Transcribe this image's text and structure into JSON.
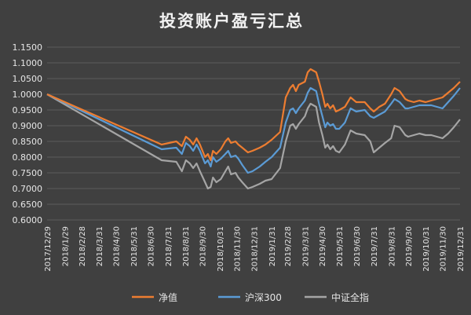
{
  "chart_data": {
    "type": "line",
    "title": "投资账户盈亏汇总",
    "xlabel": "",
    "ylabel": "",
    "ylim": [
      0.6,
      1.15
    ],
    "yticks": [
      "1.1500",
      "1.1000",
      "1.0500",
      "1.0000",
      "0.9500",
      "0.9000",
      "0.8500",
      "0.8000",
      "0.7500",
      "0.7000",
      "0.6500",
      "0.6000"
    ],
    "xticks": [
      "2017/12/29",
      "2018/1/29",
      "2018/2/28",
      "2018/3/31",
      "2018/4/30",
      "2018/5/31",
      "2018/6/30",
      "2018/7/31",
      "2018/8/31",
      "2018/9/30",
      "2018/10/31",
      "2018/11/30",
      "2018/12/31",
      "2019/1/31",
      "2019/2/28",
      "2019/3/31",
      "2019/4/30",
      "2019/5/31",
      "2019/6/30",
      "2019/7/31",
      "2019/8/31",
      "2019/9/30",
      "2019/10/31",
      "2019/11/30",
      "2019/12/31"
    ],
    "grid": true,
    "legend_position": "bottom",
    "series": [
      {
        "name": "净值",
        "color": "#ED7D31",
        "points": [
          [
            "2017-12-29",
            1.0
          ],
          [
            "2018-07-20",
            0.84
          ],
          [
            "2018-08-15",
            0.85
          ],
          [
            "2018-08-25",
            0.835
          ],
          [
            "2018-09-01",
            0.865
          ],
          [
            "2018-09-08",
            0.855
          ],
          [
            "2018-09-14",
            0.84
          ],
          [
            "2018-09-20",
            0.86
          ],
          [
            "2018-09-26",
            0.84
          ],
          [
            "2018-10-05",
            0.8
          ],
          [
            "2018-10-10",
            0.81
          ],
          [
            "2018-10-15",
            0.79
          ],
          [
            "2018-10-19",
            0.82
          ],
          [
            "2018-10-25",
            0.81
          ],
          [
            "2018-11-02",
            0.825
          ],
          [
            "2018-11-10",
            0.85
          ],
          [
            "2018-11-15",
            0.86
          ],
          [
            "2018-11-20",
            0.845
          ],
          [
            "2018-11-28",
            0.85
          ],
          [
            "2018-12-03",
            0.84
          ],
          [
            "2018-12-10",
            0.83
          ],
          [
            "2018-12-20",
            0.815
          ],
          [
            "2018-12-28",
            0.82
          ],
          [
            "2019-01-10",
            0.83
          ],
          [
            "2019-01-20",
            0.84
          ],
          [
            "2019-01-31",
            0.855
          ],
          [
            "2019-02-15",
            0.88
          ],
          [
            "2019-02-25",
            0.99
          ],
          [
            "2019-03-05",
            1.02
          ],
          [
            "2019-03-10",
            1.03
          ],
          [
            "2019-03-15",
            1.01
          ],
          [
            "2019-03-20",
            1.03
          ],
          [
            "2019-03-31",
            1.04
          ],
          [
            "2019-04-05",
            1.07
          ],
          [
            "2019-04-10",
            1.08
          ],
          [
            "2019-04-15",
            1.075
          ],
          [
            "2019-04-20",
            1.07
          ],
          [
            "2019-04-25",
            1.04
          ],
          [
            "2019-05-01",
            1.0
          ],
          [
            "2019-05-06",
            0.96
          ],
          [
            "2019-05-10",
            0.97
          ],
          [
            "2019-05-15",
            0.955
          ],
          [
            "2019-05-20",
            0.965
          ],
          [
            "2019-05-25",
            0.945
          ],
          [
            "2019-05-31",
            0.95
          ],
          [
            "2019-06-10",
            0.96
          ],
          [
            "2019-06-20",
            0.99
          ],
          [
            "2019-06-30",
            0.975
          ],
          [
            "2019-07-15",
            0.975
          ],
          [
            "2019-07-25",
            0.955
          ],
          [
            "2019-07-31",
            0.945
          ],
          [
            "2019-08-10",
            0.96
          ],
          [
            "2019-08-20",
            0.97
          ],
          [
            "2019-08-31",
            1.0
          ],
          [
            "2019-09-06",
            1.02
          ],
          [
            "2019-09-15",
            1.01
          ],
          [
            "2019-09-25",
            0.985
          ],
          [
            "2019-09-30",
            0.98
          ],
          [
            "2019-10-10",
            0.975
          ],
          [
            "2019-10-20",
            0.98
          ],
          [
            "2019-10-31",
            0.975
          ],
          [
            "2019-11-10",
            0.98
          ],
          [
            "2019-11-20",
            0.985
          ],
          [
            "2019-11-30",
            0.99
          ],
          [
            "2019-12-10",
            1.005
          ],
          [
            "2019-12-20",
            1.02
          ],
          [
            "2019-12-31",
            1.04
          ]
        ]
      },
      {
        "name": "沪深300",
        "color": "#5B9BD5",
        "points": [
          [
            "2017-12-29",
            1.0
          ],
          [
            "2018-07-20",
            0.825
          ],
          [
            "2018-08-15",
            0.83
          ],
          [
            "2018-08-25",
            0.81
          ],
          [
            "2018-09-01",
            0.845
          ],
          [
            "2018-09-08",
            0.835
          ],
          [
            "2018-09-14",
            0.82
          ],
          [
            "2018-09-20",
            0.84
          ],
          [
            "2018-09-26",
            0.82
          ],
          [
            "2018-10-05",
            0.78
          ],
          [
            "2018-10-10",
            0.79
          ],
          [
            "2018-10-15",
            0.77
          ],
          [
            "2018-10-19",
            0.8
          ],
          [
            "2018-10-25",
            0.785
          ],
          [
            "2018-11-02",
            0.795
          ],
          [
            "2018-11-10",
            0.81
          ],
          [
            "2018-11-15",
            0.82
          ],
          [
            "2018-11-20",
            0.8
          ],
          [
            "2018-11-28",
            0.805
          ],
          [
            "2018-12-03",
            0.795
          ],
          [
            "2018-12-10",
            0.775
          ],
          [
            "2018-12-20",
            0.75
          ],
          [
            "2018-12-28",
            0.755
          ],
          [
            "2019-01-10",
            0.77
          ],
          [
            "2019-01-20",
            0.785
          ],
          [
            "2019-01-31",
            0.8
          ],
          [
            "2019-02-15",
            0.83
          ],
          [
            "2019-02-25",
            0.91
          ],
          [
            "2019-03-05",
            0.95
          ],
          [
            "2019-03-10",
            0.955
          ],
          [
            "2019-03-15",
            0.94
          ],
          [
            "2019-03-20",
            0.955
          ],
          [
            "2019-03-31",
            0.98
          ],
          [
            "2019-04-05",
            1.005
          ],
          [
            "2019-04-10",
            1.02
          ],
          [
            "2019-04-15",
            1.015
          ],
          [
            "2019-04-20",
            1.01
          ],
          [
            "2019-04-25",
            0.97
          ],
          [
            "2019-05-01",
            0.93
          ],
          [
            "2019-05-06",
            0.895
          ],
          [
            "2019-05-10",
            0.91
          ],
          [
            "2019-05-15",
            0.9
          ],
          [
            "2019-05-20",
            0.905
          ],
          [
            "2019-05-25",
            0.89
          ],
          [
            "2019-05-31",
            0.89
          ],
          [
            "2019-06-10",
            0.91
          ],
          [
            "2019-06-20",
            0.955
          ],
          [
            "2019-06-30",
            0.945
          ],
          [
            "2019-07-15",
            0.95
          ],
          [
            "2019-07-25",
            0.93
          ],
          [
            "2019-07-31",
            0.925
          ],
          [
            "2019-08-10",
            0.935
          ],
          [
            "2019-08-20",
            0.945
          ],
          [
            "2019-08-31",
            0.97
          ],
          [
            "2019-09-06",
            0.985
          ],
          [
            "2019-09-15",
            0.975
          ],
          [
            "2019-09-25",
            0.955
          ],
          [
            "2019-09-30",
            0.955
          ],
          [
            "2019-10-10",
            0.96
          ],
          [
            "2019-10-20",
            0.965
          ],
          [
            "2019-10-31",
            0.965
          ],
          [
            "2019-11-10",
            0.965
          ],
          [
            "2019-11-20",
            0.96
          ],
          [
            "2019-11-30",
            0.955
          ],
          [
            "2019-12-10",
            0.975
          ],
          [
            "2019-12-20",
            0.995
          ],
          [
            "2019-12-31",
            1.02
          ]
        ]
      },
      {
        "name": "中证全指",
        "color": "#A5A5A5",
        "points": [
          [
            "2017-12-29",
            1.0
          ],
          [
            "2018-07-20",
            0.79
          ],
          [
            "2018-08-15",
            0.785
          ],
          [
            "2018-08-25",
            0.755
          ],
          [
            "2018-09-01",
            0.79
          ],
          [
            "2018-09-08",
            0.78
          ],
          [
            "2018-09-14",
            0.765
          ],
          [
            "2018-09-20",
            0.78
          ],
          [
            "2018-09-26",
            0.755
          ],
          [
            "2018-10-05",
            0.72
          ],
          [
            "2018-10-10",
            0.7
          ],
          [
            "2018-10-15",
            0.705
          ],
          [
            "2018-10-19",
            0.735
          ],
          [
            "2018-10-25",
            0.72
          ],
          [
            "2018-11-02",
            0.73
          ],
          [
            "2018-11-10",
            0.755
          ],
          [
            "2018-11-15",
            0.77
          ],
          [
            "2018-11-20",
            0.745
          ],
          [
            "2018-11-28",
            0.75
          ],
          [
            "2018-12-03",
            0.735
          ],
          [
            "2018-12-10",
            0.72
          ],
          [
            "2018-12-20",
            0.7
          ],
          [
            "2018-12-28",
            0.705
          ],
          [
            "2019-01-10",
            0.715
          ],
          [
            "2019-01-20",
            0.725
          ],
          [
            "2019-01-31",
            0.73
          ],
          [
            "2019-02-15",
            0.765
          ],
          [
            "2019-02-25",
            0.85
          ],
          [
            "2019-03-05",
            0.9
          ],
          [
            "2019-03-10",
            0.905
          ],
          [
            "2019-03-15",
            0.89
          ],
          [
            "2019-03-20",
            0.905
          ],
          [
            "2019-03-31",
            0.93
          ],
          [
            "2019-04-05",
            0.955
          ],
          [
            "2019-04-10",
            0.97
          ],
          [
            "2019-04-15",
            0.965
          ],
          [
            "2019-04-20",
            0.96
          ],
          [
            "2019-04-25",
            0.91
          ],
          [
            "2019-05-01",
            0.87
          ],
          [
            "2019-05-06",
            0.83
          ],
          [
            "2019-05-10",
            0.84
          ],
          [
            "2019-05-15",
            0.825
          ],
          [
            "2019-05-20",
            0.835
          ],
          [
            "2019-05-25",
            0.82
          ],
          [
            "2019-05-31",
            0.815
          ],
          [
            "2019-06-10",
            0.84
          ],
          [
            "2019-06-20",
            0.885
          ],
          [
            "2019-06-30",
            0.875
          ],
          [
            "2019-07-15",
            0.87
          ],
          [
            "2019-07-25",
            0.85
          ],
          [
            "2019-07-31",
            0.815
          ],
          [
            "2019-08-10",
            0.83
          ],
          [
            "2019-08-20",
            0.845
          ],
          [
            "2019-08-31",
            0.86
          ],
          [
            "2019-09-06",
            0.9
          ],
          [
            "2019-09-15",
            0.895
          ],
          [
            "2019-09-25",
            0.87
          ],
          [
            "2019-09-30",
            0.865
          ],
          [
            "2019-10-10",
            0.87
          ],
          [
            "2019-10-20",
            0.875
          ],
          [
            "2019-10-31",
            0.87
          ],
          [
            "2019-11-10",
            0.87
          ],
          [
            "2019-11-20",
            0.865
          ],
          [
            "2019-11-30",
            0.86
          ],
          [
            "2019-12-10",
            0.875
          ],
          [
            "2019-12-20",
            0.895
          ],
          [
            "2019-12-31",
            0.92
          ]
        ]
      }
    ]
  }
}
